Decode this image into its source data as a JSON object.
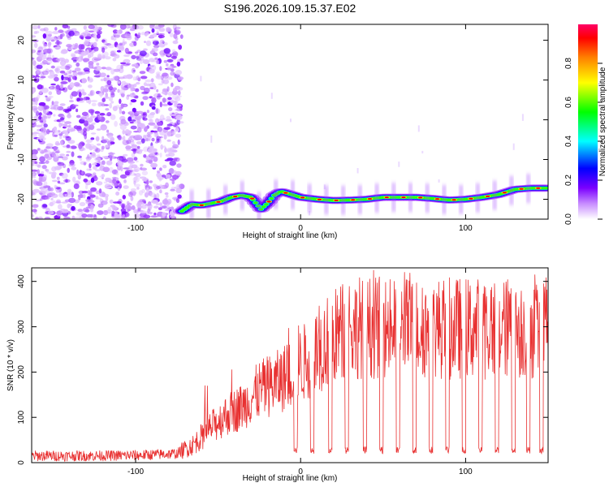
{
  "chart_data": [
    {
      "type": "heatmap",
      "title": "S196.2026.109.15.37.E02",
      "xlabel": "Height of straight line (km)",
      "ylabel": "Frequency (Hz)",
      "xlim": [
        -163,
        150
      ],
      "ylim": [
        -25,
        24
      ],
      "xticks": [
        -100,
        0,
        100
      ],
      "yticks": [
        -20,
        -10,
        0,
        10,
        20
      ],
      "x_tick_labels": [
        "-100",
        "0",
        "100"
      ],
      "y_tick_labels": [
        "-20",
        "-10",
        "0",
        "10",
        "20"
      ],
      "noise_region_x": [
        -163,
        -72
      ],
      "track": {
        "x": [
          -72,
          -66,
          -60,
          -54,
          -48,
          -42,
          -36,
          -30,
          -24,
          -20,
          -16,
          -12,
          -8,
          -4,
          0,
          10,
          20,
          30,
          40,
          50,
          60,
          70,
          80,
          90,
          100,
          110,
          120,
          130,
          140,
          150
        ],
        "y": [
          -23,
          -21.3,
          -21.5,
          -21,
          -20.5,
          -19.5,
          -19,
          -19.5,
          -22.5,
          -21,
          -19,
          -18,
          -18.5,
          -19,
          -19.5,
          -20,
          -20.3,
          -20.2,
          -20,
          -19.5,
          -19.5,
          -19.5,
          -19.8,
          -20.2,
          -20,
          -19.5,
          -18.8,
          -17.5,
          -17.2,
          -17.2
        ]
      },
      "colorbar": {
        "label": "Normalized spectral amplitude",
        "range": [
          0,
          1
        ],
        "ticks": [
          "0.0",
          "0.2",
          "0.4",
          "0.6",
          "0.8"
        ],
        "tick_values": [
          0.0,
          0.2,
          0.4,
          0.6,
          0.8
        ]
      }
    },
    {
      "type": "line",
      "xlabel": "Height of straight line (km)",
      "ylabel": "SNR (10 * v/v)",
      "xlim": [
        -163,
        150
      ],
      "ylim": [
        0,
        430
      ],
      "xticks": [
        -100,
        0,
        100
      ],
      "yticks": [
        0,
        100,
        200,
        300,
        400
      ],
      "x_tick_labels": [
        "-100",
        "0",
        "100"
      ],
      "y_tick_labels": [
        "0",
        "100",
        "200",
        "300",
        "400"
      ],
      "color": "#e83030",
      "envelope": {
        "x": [
          -163,
          -130,
          -100,
          -75,
          -65,
          -55,
          -45,
          -35,
          -25,
          -15,
          -5,
          5,
          15,
          25,
          35,
          45,
          150
        ],
        "y": [
          15,
          15,
          16,
          20,
          40,
          75,
          105,
          125,
          160,
          175,
          200,
          230,
          265,
          290,
          300,
          298,
          296
        ]
      },
      "dips_x": [
        -3,
        7,
        18,
        28,
        39,
        49,
        59,
        69,
        79,
        89,
        99,
        109,
        119,
        129,
        138,
        146
      ],
      "dips_y": 20,
      "peak_max": 425
    }
  ]
}
